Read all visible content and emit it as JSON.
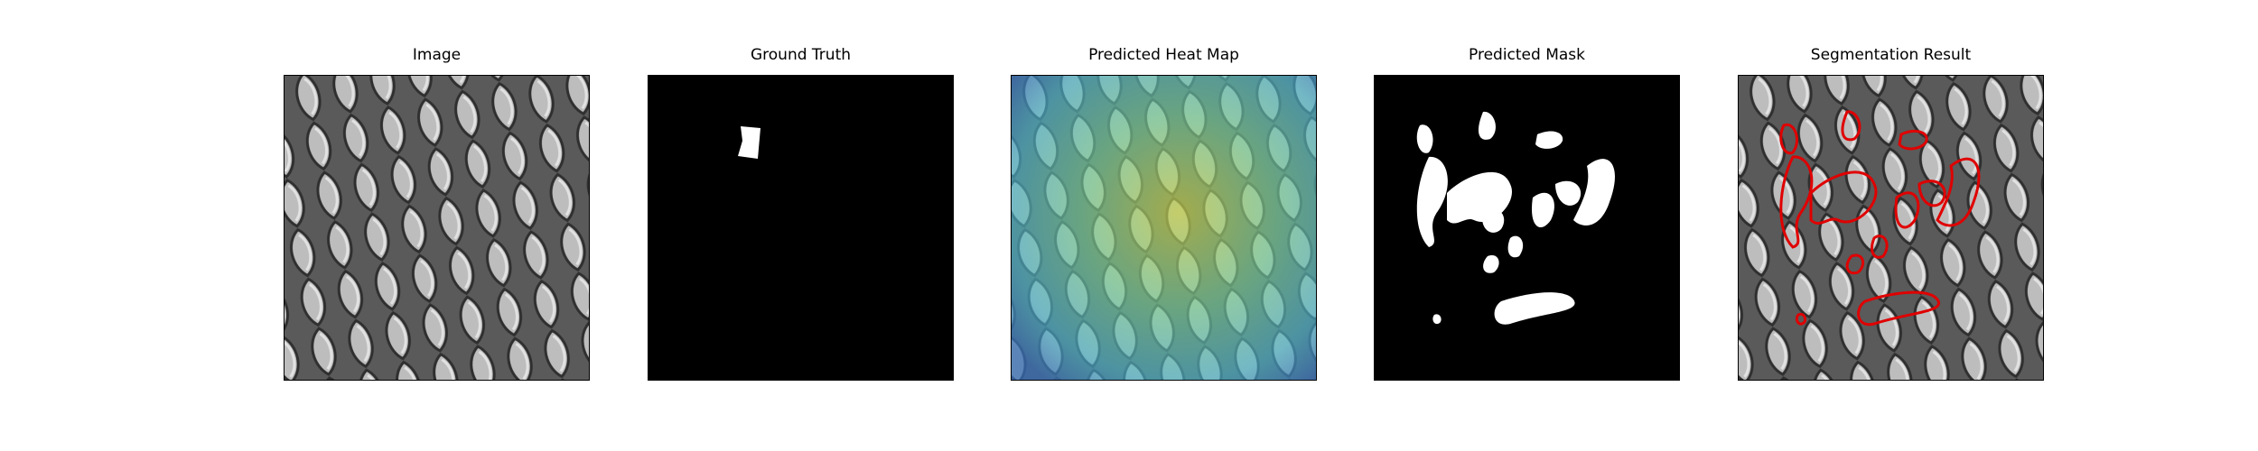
{
  "figure": {
    "panels": [
      {
        "title": "Image"
      },
      {
        "title": "Ground Truth"
      },
      {
        "title": "Predicted Heat Map"
      },
      {
        "title": "Predicted Mask"
      },
      {
        "title": "Segmentation Result"
      }
    ]
  },
  "colors": {
    "background": "#ffffff",
    "mask_fg": "#ffffff",
    "mask_bg": "#000000",
    "contour": "#e00000",
    "texture_light": "#bdbdbd",
    "texture_dark": "#3a3a3a"
  }
}
